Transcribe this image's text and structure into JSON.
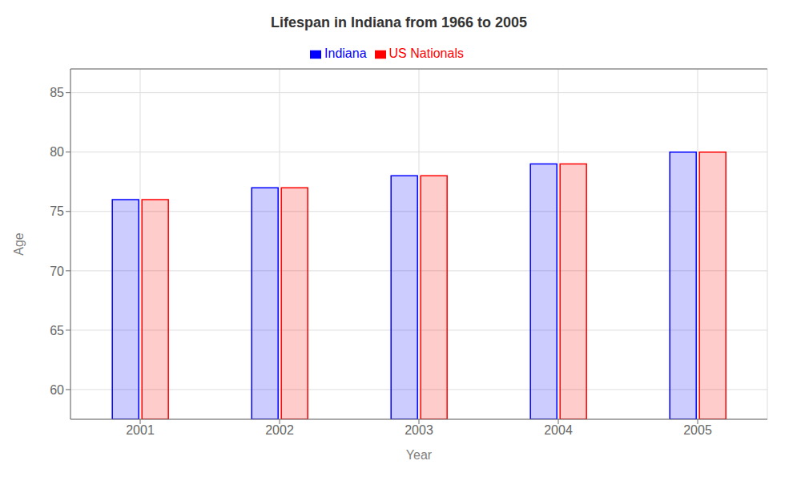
{
  "chart_data": {
    "type": "bar",
    "title": "Lifespan in Indiana from 1966 to 2005",
    "xlabel": "Year",
    "ylabel": "Age",
    "categories": [
      "2001",
      "2002",
      "2003",
      "2004",
      "2005"
    ],
    "series": [
      {
        "name": "Indiana",
        "color": "#0000ff",
        "values": [
          76.0,
          77.0,
          78.0,
          79.0,
          80.0
        ]
      },
      {
        "name": "US Nationals",
        "color": "#ff0000",
        "values": [
          76.0,
          77.0,
          78.0,
          79.0,
          80.0
        ]
      }
    ],
    "ylim": [
      57.5,
      87
    ],
    "yticks": [
      60,
      65,
      70,
      75,
      80,
      85
    ],
    "grid": true,
    "legend": "top"
  }
}
